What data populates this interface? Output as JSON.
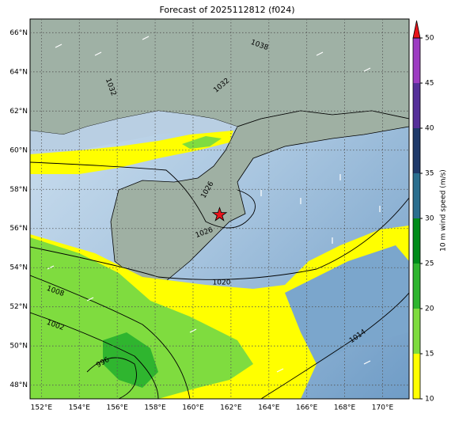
{
  "title": "Forecast of 2025112812 (f024)",
  "map": {
    "lonlim": [
      151.4,
      171.4
    ],
    "latlim": [
      47.3,
      66.7
    ],
    "lonticks": [
      {
        "value": 152,
        "label": "152°E"
      },
      {
        "value": 154,
        "label": "154°E"
      },
      {
        "value": 156,
        "label": "156°E"
      },
      {
        "value": 158,
        "label": "158°E"
      },
      {
        "value": 160,
        "label": "160°E"
      },
      {
        "value": 162,
        "label": "162°E"
      },
      {
        "value": 164,
        "label": "164°E"
      },
      {
        "value": 166,
        "label": "166°E"
      },
      {
        "value": 168,
        "label": "168°E"
      },
      {
        "value": 170,
        "label": "170°E"
      }
    ],
    "latticks": [
      {
        "value": 48,
        "label": "48°N"
      },
      {
        "value": 50,
        "label": "50°N"
      },
      {
        "value": 52,
        "label": "52°N"
      },
      {
        "value": 54,
        "label": "54°N"
      },
      {
        "value": 56,
        "label": "56°N"
      },
      {
        "value": 58,
        "label": "58°N"
      },
      {
        "value": 60,
        "label": "60°N"
      },
      {
        "value": 62,
        "label": "62°N"
      },
      {
        "value": 64,
        "label": "64°N"
      },
      {
        "value": 66,
        "label": "66°N"
      }
    ],
    "grid": true,
    "marker": {
      "lon": 161.4,
      "lat": 56.7,
      "color": "#e8141c"
    },
    "contour_labels": [
      "1038",
      "1032",
      "1032",
      "1026",
      "1026",
      "1020",
      "1008",
      "1002",
      "996",
      "1014"
    ]
  },
  "colorbar": {
    "label": "10 m wind speed (m/s)",
    "ticks": [
      10,
      15,
      20,
      25,
      30,
      35,
      40,
      45,
      50
    ],
    "colors": [
      "#ffff00",
      "#7fdc3f",
      "#2fb52f",
      "#008c1a",
      "#2b6f8f",
      "#1f3a6a",
      "#56309a",
      "#9d3dc2"
    ],
    "extend_color": "#e8141c"
  }
}
